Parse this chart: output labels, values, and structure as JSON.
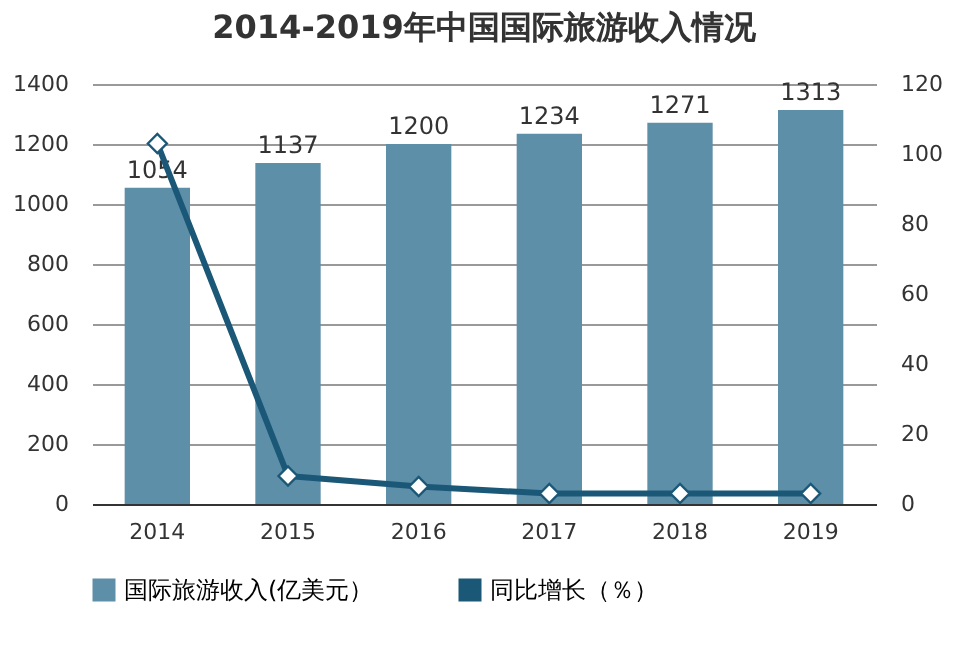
{
  "chart_data": {
    "type": "bar",
    "title": "2014-2019年中国国际旅游收入情况",
    "categories": [
      "2014",
      "2015",
      "2016",
      "2017",
      "2018",
      "2019"
    ],
    "series": [
      {
        "name": "国际旅游收入(亿美元）",
        "color": "#5e8fa8",
        "values": [
          1054,
          1137,
          1200,
          1234,
          1271,
          1313
        ],
        "data_labels": true
      },
      {
        "name": "同比增长（％）",
        "type": "line",
        "axis": "y2",
        "color": "#1b5877",
        "marker": "diamond",
        "values": [
          103,
          8,
          5,
          3,
          3,
          3
        ]
      }
    ],
    "ylim": [
      0,
      1400
    ],
    "yticks": [
      0,
      200,
      400,
      600,
      800,
      1000,
      1200,
      1400
    ],
    "y2lim": [
      0,
      120
    ],
    "y2ticks": [
      0,
      20,
      40,
      60,
      80,
      100,
      120
    ],
    "grid": "y",
    "legend": "bottom"
  }
}
